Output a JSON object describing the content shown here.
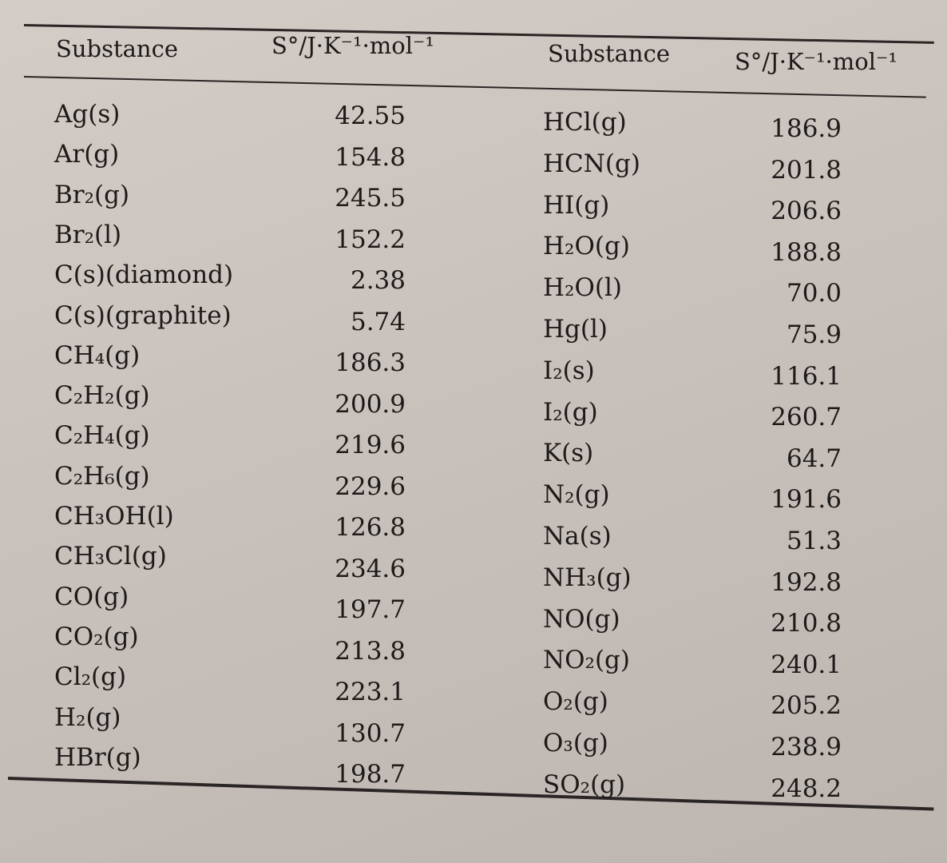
{
  "headers": {
    "substance": "Substance",
    "entropy": "S°/J·K⁻¹·mol⁻¹"
  },
  "left_rows": [
    {
      "substance": "Ag(s)",
      "value": "42.55"
    },
    {
      "substance": "Ar(g)",
      "value": "154.8"
    },
    {
      "substance": "Br₂(g)",
      "value": "245.5"
    },
    {
      "substance": "Br₂(l)",
      "value": "152.2"
    },
    {
      "substance": "C(s)(diamond)",
      "value": "2.38"
    },
    {
      "substance": "C(s)(graphite)",
      "value": "5.74"
    },
    {
      "substance": "CH₄(g)",
      "value": "186.3"
    },
    {
      "substance": "C₂H₂(g)",
      "value": "200.9"
    },
    {
      "substance": "C₂H₄(g)",
      "value": "219.6"
    },
    {
      "substance": "C₂H₆(g)",
      "value": "229.6"
    },
    {
      "substance": "CH₃OH(l)",
      "value": "126.8"
    },
    {
      "substance": "CH₃Cl(g)",
      "value": "234.6"
    },
    {
      "substance": "CO(g)",
      "value": "197.7"
    },
    {
      "substance": "CO₂(g)",
      "value": "213.8"
    },
    {
      "substance": "Cl₂(g)",
      "value": "223.1"
    },
    {
      "substance": "H₂(g)",
      "value": "130.7"
    },
    {
      "substance": "HBr(g)",
      "value": "198.7"
    }
  ],
  "right_rows": [
    {
      "substance": "HCl(g)",
      "value": "186.9"
    },
    {
      "substance": "HCN(g)",
      "value": "201.8"
    },
    {
      "substance": "HI(g)",
      "value": "206.6"
    },
    {
      "substance": "H₂O(g)",
      "value": "188.8"
    },
    {
      "substance": "H₂O(l)",
      "value": "70.0"
    },
    {
      "substance": "Hg(l)",
      "value": "75.9"
    },
    {
      "substance": "I₂(s)",
      "value": "116.1"
    },
    {
      "substance": "I₂(g)",
      "value": "260.7"
    },
    {
      "substance": "K(s)",
      "value": "64.7"
    },
    {
      "substance": "N₂(g)",
      "value": "191.6"
    },
    {
      "substance": "Na(s)",
      "value": "51.3"
    },
    {
      "substance": "NH₃(g)",
      "value": "192.8"
    },
    {
      "substance": "NO(g)",
      "value": "210.8"
    },
    {
      "substance": "NO₂(g)",
      "value": "240.1"
    },
    {
      "substance": "O₂(g)",
      "value": "205.2"
    },
    {
      "substance": "O₃(g)",
      "value": "238.9"
    },
    {
      "substance": "SO₂(g)",
      "value": "248.2"
    }
  ]
}
